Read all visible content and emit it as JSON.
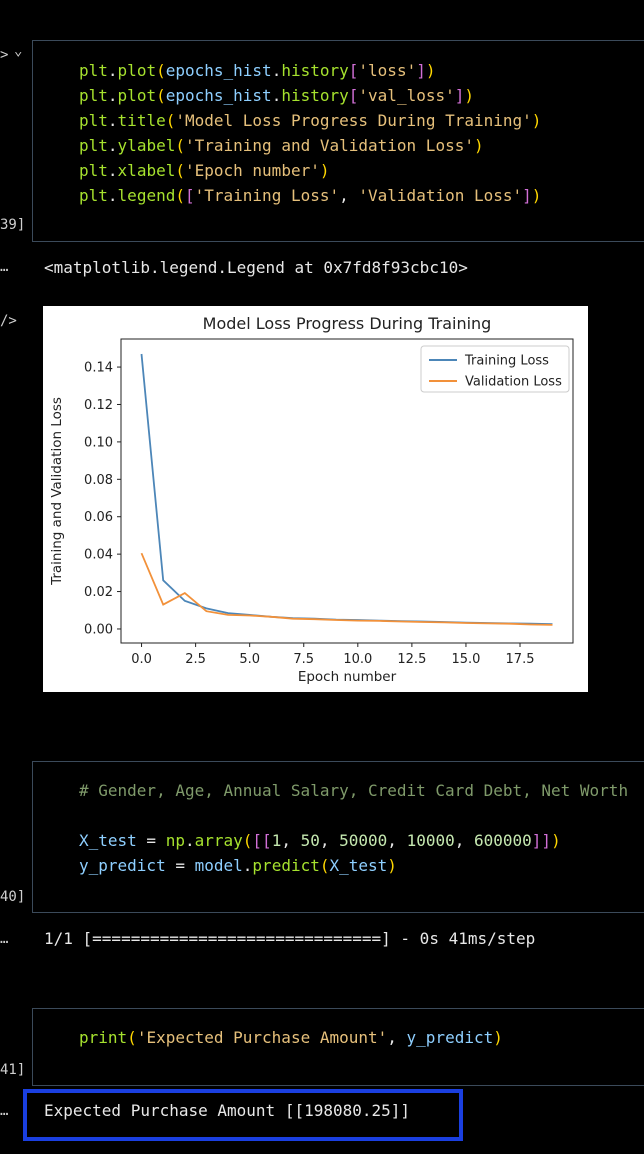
{
  "cells": [
    {
      "exec_count": "39]",
      "lines": [
        [
          [
            "fn",
            "plt"
          ],
          [
            "pun",
            "."
          ],
          [
            "fn",
            "plot"
          ],
          [
            "br1",
            "("
          ],
          [
            "var",
            "epochs_hist"
          ],
          [
            "pun",
            "."
          ],
          [
            "fn",
            "history"
          ],
          [
            "br2",
            "["
          ],
          [
            "str",
            "'loss'"
          ],
          [
            "br2",
            "]"
          ],
          [
            "br1",
            ")"
          ]
        ],
        [
          [
            "fn",
            "plt"
          ],
          [
            "pun",
            "."
          ],
          [
            "fn",
            "plot"
          ],
          [
            "br1",
            "("
          ],
          [
            "var",
            "epochs_hist"
          ],
          [
            "pun",
            "."
          ],
          [
            "fn",
            "history"
          ],
          [
            "br2",
            "["
          ],
          [
            "str",
            "'val_loss'"
          ],
          [
            "br2",
            "]"
          ],
          [
            "br1",
            ")"
          ]
        ],
        [
          [
            "fn",
            "plt"
          ],
          [
            "pun",
            "."
          ],
          [
            "fn",
            "title"
          ],
          [
            "br1",
            "("
          ],
          [
            "str",
            "'Model Loss Progress During Training'"
          ],
          [
            "br1",
            ")"
          ]
        ],
        [
          [
            "fn",
            "plt"
          ],
          [
            "pun",
            "."
          ],
          [
            "fn",
            "ylabel"
          ],
          [
            "br1",
            "("
          ],
          [
            "str",
            "'Training and Validation Loss'"
          ],
          [
            "br1",
            ")"
          ]
        ],
        [
          [
            "fn",
            "plt"
          ],
          [
            "pun",
            "."
          ],
          [
            "fn",
            "xlabel"
          ],
          [
            "br1",
            "("
          ],
          [
            "str",
            "'Epoch number'"
          ],
          [
            "br1",
            ")"
          ]
        ],
        [
          [
            "fn",
            "plt"
          ],
          [
            "pun",
            "."
          ],
          [
            "fn",
            "legend"
          ],
          [
            "br1",
            "("
          ],
          [
            "br2",
            "["
          ],
          [
            "str",
            "'Training Loss'"
          ],
          [
            "pun",
            ", "
          ],
          [
            "str",
            "'Validation Loss'"
          ],
          [
            "br2",
            "]"
          ],
          [
            "br1",
            ")"
          ]
        ]
      ]
    },
    {
      "exec_count": "40]",
      "lines": [
        [
          [
            "cmt",
            "# Gender, Age, Annual Salary, Credit Card Debt, Net Worth"
          ]
        ],
        [],
        [
          [
            "var",
            "X_test"
          ],
          [
            "pun",
            " = "
          ],
          [
            "fn",
            "np"
          ],
          [
            "pun",
            "."
          ],
          [
            "fn",
            "array"
          ],
          [
            "br1",
            "("
          ],
          [
            "br2",
            "[["
          ],
          [
            "num",
            "1"
          ],
          [
            "pun",
            ", "
          ],
          [
            "num",
            "50"
          ],
          [
            "pun",
            ", "
          ],
          [
            "num",
            "50000"
          ],
          [
            "pun",
            ", "
          ],
          [
            "num",
            "10000"
          ],
          [
            "pun",
            ", "
          ],
          [
            "num",
            "600000"
          ],
          [
            "br2",
            "]]"
          ],
          [
            "br1",
            ")"
          ]
        ],
        [
          [
            "var",
            "y_predict"
          ],
          [
            "pun",
            " = "
          ],
          [
            "var",
            "model"
          ],
          [
            "pun",
            "."
          ],
          [
            "fn",
            "predict"
          ],
          [
            "br1",
            "("
          ],
          [
            "var",
            "X_test"
          ],
          [
            "br1",
            ")"
          ]
        ]
      ]
    },
    {
      "exec_count": "41]",
      "lines": [
        [
          [
            "fn",
            "print"
          ],
          [
            "br1",
            "("
          ],
          [
            "str",
            "'Expected Purchase Amount'"
          ],
          [
            "pun",
            ", "
          ],
          [
            "var",
            "y_predict"
          ],
          [
            "br1",
            ")"
          ]
        ]
      ]
    }
  ],
  "outputs": {
    "legend_repr": "<matplotlib.legend.Legend at 0x7fd8f93cbc10>",
    "progress": "1/1 [==============================] - 0s 41ms/step",
    "prediction": "Expected Purchase Amount [[198080.25]]"
  },
  "gutter": {
    "collapse_arrow": ">",
    "chevron": "⌄",
    "ellipsis": "…",
    "html_marker": "/>"
  },
  "colors": {
    "training": "#4c86b8",
    "validation": "#f2913a",
    "highlight": "#1a3fe0"
  },
  "chart_data": {
    "type": "line",
    "title": "Model Loss Progress During Training",
    "xlabel": "Epoch number",
    "ylabel": "Training and Validation Loss",
    "xlim": [
      -0.95,
      19.95
    ],
    "ylim": [
      -0.0075,
      0.155
    ],
    "xticks": [
      "0.0",
      "2.5",
      "5.0",
      "7.5",
      "10.0",
      "12.5",
      "15.0",
      "17.5"
    ],
    "xtick_values": [
      0,
      2.5,
      5,
      7.5,
      10,
      12.5,
      15,
      17.5
    ],
    "yticks": [
      "0.00",
      "0.02",
      "0.04",
      "0.06",
      "0.08",
      "0.10",
      "0.12",
      "0.14"
    ],
    "ytick_values": [
      0,
      0.02,
      0.04,
      0.06,
      0.08,
      0.1,
      0.12,
      0.14
    ],
    "legend": "top-right",
    "x": [
      0,
      1,
      2,
      3,
      4,
      5,
      6,
      7,
      8,
      9,
      10,
      11,
      12,
      13,
      14,
      15,
      16,
      17,
      18,
      19
    ],
    "series": [
      {
        "name": "Training Loss",
        "color": "#4c86b8",
        "values": [
          0.147,
          0.026,
          0.015,
          0.011,
          0.0085,
          0.0075,
          0.0065,
          0.0058,
          0.0055,
          0.005,
          0.0048,
          0.0045,
          0.0042,
          0.004,
          0.0037,
          0.0034,
          0.0032,
          0.003,
          0.0028,
          0.0026
        ]
      },
      {
        "name": "Validation Loss",
        "color": "#f2913a",
        "values": [
          0.0405,
          0.013,
          0.0192,
          0.0095,
          0.0075,
          0.0072,
          0.0065,
          0.0055,
          0.0052,
          0.0048,
          0.0045,
          0.0043,
          0.004,
          0.0037,
          0.0035,
          0.0032,
          0.003,
          0.0028,
          0.0024,
          0.0022
        ]
      }
    ]
  }
}
